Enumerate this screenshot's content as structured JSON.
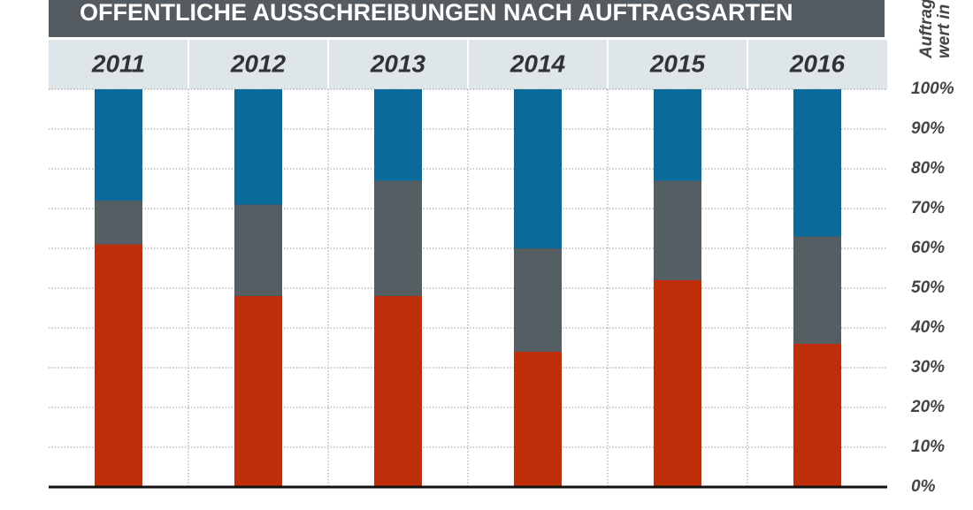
{
  "chart_data": {
    "type": "stacked_bar",
    "title": "OFFENTLICHE AUSSCHREIBUNGEN NACH AUFTRAGSARTEN",
    "y_label": [
      "Auftrag",
      "wert in"
    ],
    "categories": [
      "2011",
      "2012",
      "2013",
      "2014",
      "2015",
      "2016"
    ],
    "series": [
      {
        "color": "#bf2e0a",
        "values": [
          61,
          48,
          48,
          34,
          52,
          36
        ]
      },
      {
        "color": "#555e63",
        "values": [
          11,
          23,
          29,
          26,
          25,
          27
        ]
      },
      {
        "color": "#0a6a9a",
        "values": [
          28,
          29,
          23,
          40,
          23,
          37
        ]
      }
    ],
    "ylim": [
      0,
      100
    ],
    "yticks": [
      {
        "value": 0,
        "label": "0%"
      },
      {
        "value": 10,
        "label": "10%"
      },
      {
        "value": 20,
        "label": "20%"
      },
      {
        "value": 30,
        "label": "30%"
      },
      {
        "value": 40,
        "label": "40%"
      },
      {
        "value": 50,
        "label": "50%"
      },
      {
        "value": 60,
        "label": "60%"
      },
      {
        "value": 70,
        "label": "70%"
      },
      {
        "value": 80,
        "label": "80%"
      },
      {
        "value": 90,
        "label": "90%"
      },
      {
        "value": 100,
        "label": "100%"
      }
    ],
    "grid": true
  }
}
